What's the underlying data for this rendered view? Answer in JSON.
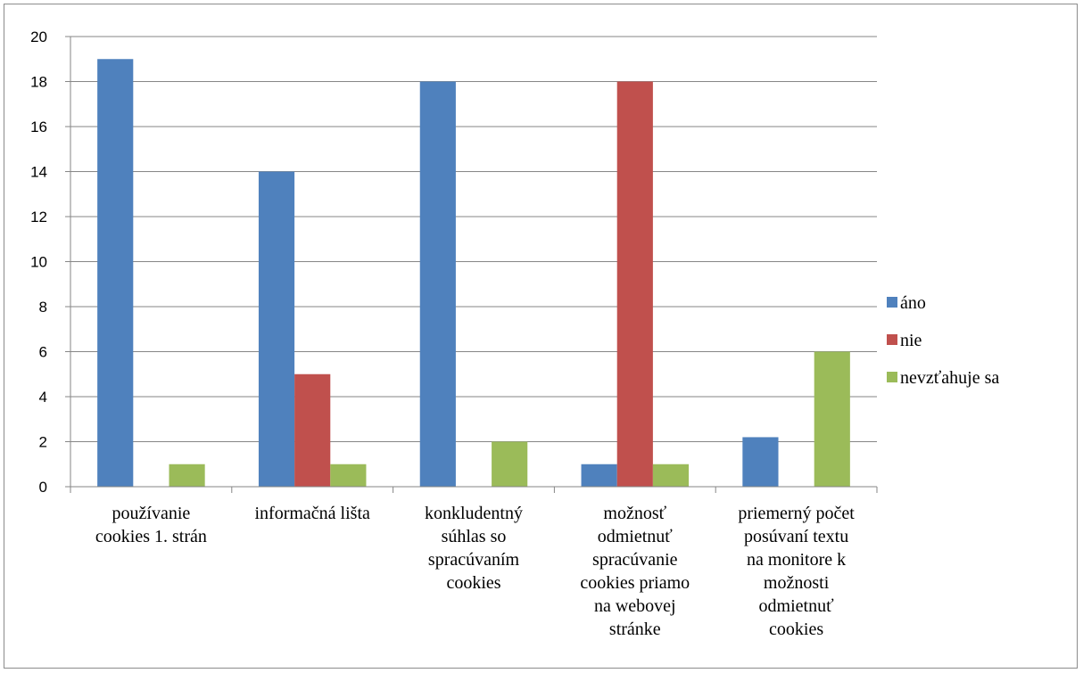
{
  "chart_data": {
    "type": "bar",
    "title": "",
    "xlabel": "",
    "ylabel": "",
    "ylim": [
      0,
      20
    ],
    "yticks": [
      0,
      2,
      4,
      6,
      8,
      10,
      12,
      14,
      16,
      18,
      20
    ],
    "grid": true,
    "legend_position": "right",
    "categories": [
      [
        "používanie",
        "cookies 1. strán"
      ],
      [
        "informačná lišta"
      ],
      [
        "konkludentný",
        "súhlas so",
        "spracúvaním",
        "cookies"
      ],
      [
        "možnosť",
        "odmietnuť",
        "spracúvanie",
        "cookies priamo",
        "na webovej",
        "stránke"
      ],
      [
        "priemerný počet",
        "posúvaní textu",
        "na monitore k",
        "možnosti",
        "odmietnuť",
        "cookies"
      ]
    ],
    "series": [
      {
        "name": "áno",
        "color": "#4f81bd",
        "values": [
          19,
          14,
          18,
          1,
          2.2
        ]
      },
      {
        "name": "nie",
        "color": "#c0504d",
        "values": [
          0,
          5,
          0,
          18,
          0
        ]
      },
      {
        "name": "nevzťahuje sa",
        "color": "#9bbb59",
        "values": [
          1,
          1,
          2,
          1,
          6
        ]
      }
    ]
  }
}
